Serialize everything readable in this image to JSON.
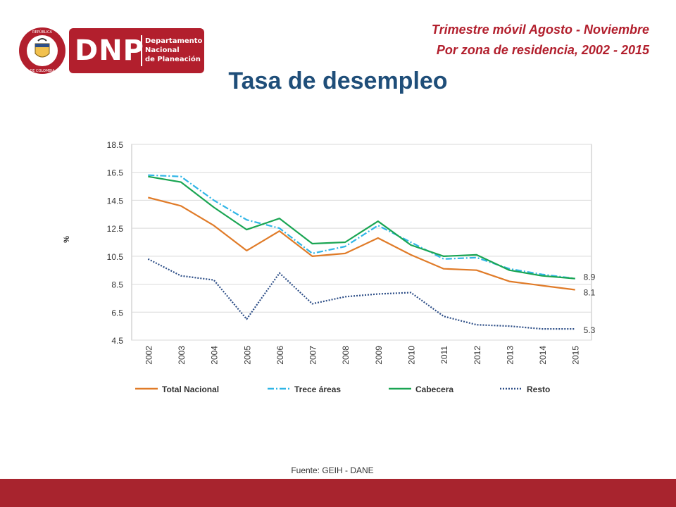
{
  "header": {
    "brand_abbr": "DNP",
    "brand_name": [
      "Departamento",
      "Nacional",
      "de Planeación"
    ],
    "seal_text_top": "REPÚBLICA",
    "seal_text_bottom": "DE COLOMBIA",
    "subtitle_line1": "Trimestre móvil Agosto - Noviembre",
    "subtitle_line2": "Por zona de residencia, 2002 - 2015",
    "title": "Tasa de desempleo"
  },
  "footer": {
    "source": "Fuente: GEIH - DANE"
  },
  "colors": {
    "brand_red": "#b21f2d",
    "footer_red": "#a8242e",
    "title_blue": "#1f4e79"
  },
  "chart_data": {
    "type": "line",
    "title": "",
    "xlabel": "",
    "ylabel": "%",
    "x": [
      "2002",
      "2003",
      "2004",
      "2005",
      "2006",
      "2007",
      "2008",
      "2009",
      "2010",
      "2011",
      "2012",
      "2013",
      "2014",
      "2015"
    ],
    "ylim": [
      4.5,
      18.5
    ],
    "yticks": [
      "4.5",
      "6.5",
      "8.5",
      "10.5",
      "12.5",
      "14.5",
      "16.5",
      "18.5"
    ],
    "grid": true,
    "legend": "bottom",
    "series": [
      {
        "name": "Total Nacional",
        "color": "#e07b28",
        "dash": "solid",
        "values": [
          14.7,
          14.1,
          12.7,
          10.9,
          12.3,
          10.5,
          10.7,
          11.8,
          10.6,
          9.6,
          9.5,
          8.7,
          8.4,
          8.1
        ]
      },
      {
        "name": "Trece áreas",
        "color": "#2fb5e6",
        "dash": "dashdot",
        "values": [
          16.3,
          16.2,
          14.5,
          13.1,
          12.5,
          10.7,
          11.2,
          12.7,
          11.5,
          10.3,
          10.4,
          9.6,
          9.2,
          8.9
        ]
      },
      {
        "name": "Cabecera",
        "color": "#1aa553",
        "dash": "solid",
        "values": [
          16.2,
          15.8,
          14.0,
          12.4,
          13.2,
          11.4,
          11.5,
          13.0,
          11.3,
          10.5,
          10.6,
          9.5,
          9.1,
          8.9
        ]
      },
      {
        "name": "Resto",
        "color": "#2d4e87",
        "dash": "dotted",
        "values": [
          10.3,
          9.1,
          8.8,
          6.0,
          9.3,
          7.1,
          7.6,
          7.8,
          7.9,
          6.2,
          5.6,
          5.5,
          5.3,
          5.3
        ]
      }
    ],
    "end_labels": [
      {
        "series": "Cabecera",
        "text": "8.9"
      },
      {
        "series": "Total Nacional",
        "text": "8.1"
      },
      {
        "series": "Resto",
        "text": "5.3"
      }
    ]
  }
}
